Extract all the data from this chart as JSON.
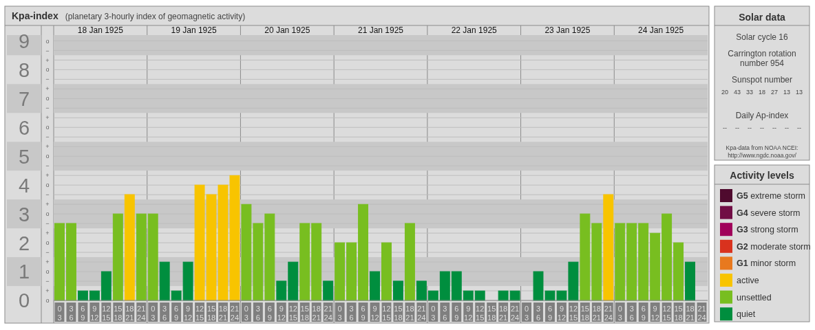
{
  "chart_data": [
    {
      "type": "bar",
      "title": "Kpa-index",
      "subtitle": "(planetary 3-hourly index of geomagnetic activity)",
      "categories": [
        "0\n3",
        "3\n6",
        "6\n9",
        "9\n12",
        "12\n15",
        "15\n18",
        "18\n21",
        "21\n24",
        "0\n3",
        "3\n6",
        "6\n9",
        "9\n12",
        "12\n15",
        "15\n18",
        "18\n21",
        "21\n24",
        "0\n3",
        "3\n6",
        "6\n9",
        "9\n12",
        "12\n15",
        "15\n18",
        "18\n21",
        "21\n24",
        "0\n3",
        "3\n6",
        "6\n9",
        "9\n12",
        "12\n15",
        "15\n18",
        "18\n21",
        "21\n24",
        "0\n3",
        "3\n6",
        "6\n9",
        "9\n12",
        "12\n15",
        "15\n18",
        "18\n21",
        "21\n24",
        "0\n3",
        "3\n6",
        "6\n9",
        "9\n12",
        "12\n15",
        "15\n18",
        "18\n21",
        "21\n24",
        "0\n3",
        "3\n6",
        "6\n9",
        "9\n12",
        "12\n15",
        "15\n18",
        "18\n21",
        "21\n24"
      ],
      "x2lim": [
        "1925-01-18",
        "1925-01-25"
      ],
      "x2ticks": [
        {
          "value": "1925-01-18T12:00",
          "label": "18 Jan 1925"
        },
        {
          "value": "1925-01-19T12:00",
          "label": "19 Jan 1925"
        },
        {
          "value": "1925-01-20T12:00",
          "label": "20 Jan 1925"
        },
        {
          "value": "1925-01-21T12:00",
          "label": "21 Jan 1925"
        },
        {
          "value": "1925-01-22T12:00",
          "label": "22 Jan 1925"
        },
        {
          "value": "1925-01-23T12:00",
          "label": "23 Jan 1925"
        },
        {
          "value": "1925-01-24T12:00",
          "label": "24 Jan 1925"
        }
      ],
      "annotations": [
        "o",
        "+",
        "−",
        "o",
        "+",
        "−",
        "o",
        "+",
        "−",
        "o",
        "+",
        "−",
        "o",
        "+",
        "−",
        "o",
        "+",
        "−",
        "o",
        "+",
        "−",
        "o",
        "+",
        "−",
        "o",
        "+",
        "−",
        "o"
      ],
      "legend": "right",
      "legend_title": "Activity levels",
      "grid": true,
      "ylim": [
        0,
        9.2
      ],
      "yticks": [
        0,
        1,
        2,
        3,
        4,
        5,
        6,
        7,
        8,
        9
      ],
      "bands": [
        {
          "axis": "y",
          "from": 0.5,
          "to": 1.5,
          "color": "#c8c8c8"
        },
        {
          "axis": "y",
          "from": 2.5,
          "to": 3.5,
          "color": "#c8c8c8"
        },
        {
          "axis": "y",
          "from": 4.5,
          "to": 5.5,
          "color": "#c8c8c8"
        },
        {
          "axis": "y",
          "from": 6.5,
          "to": 7.5,
          "color": "#c8c8c8"
        },
        {
          "axis": "y",
          "from": 8.5,
          "to": 9.2,
          "color": "#c8c8c8"
        }
      ],
      "series": [
        {
          "name": "G5 extreme storm",
          "color": "#4f0a2e",
          "values": [
            null,
            null,
            null,
            null,
            null,
            null,
            null,
            null,
            null,
            null,
            null,
            null,
            null,
            null,
            null,
            null,
            null,
            null,
            null,
            null,
            null,
            null,
            null,
            null,
            null,
            null,
            null,
            null,
            null,
            null,
            null,
            null,
            null,
            null,
            null,
            null,
            null,
            null,
            null,
            null,
            null,
            null,
            null,
            null,
            null,
            null,
            null,
            null,
            null,
            null,
            null,
            null,
            null,
            null,
            null,
            null
          ]
        },
        {
          "name": "G4 severe storm",
          "color": "#710d45",
          "values": [
            null,
            null,
            null,
            null,
            null,
            null,
            null,
            null,
            null,
            null,
            null,
            null,
            null,
            null,
            null,
            null,
            null,
            null,
            null,
            null,
            null,
            null,
            null,
            null,
            null,
            null,
            null,
            null,
            null,
            null,
            null,
            null,
            null,
            null,
            null,
            null,
            null,
            null,
            null,
            null,
            null,
            null,
            null,
            null,
            null,
            null,
            null,
            null,
            null,
            null,
            null,
            null,
            null,
            null,
            null,
            null
          ]
        },
        {
          "name": "G3 strong storm",
          "color": "#a0005a",
          "values": [
            null,
            null,
            null,
            null,
            null,
            null,
            null,
            null,
            null,
            null,
            null,
            null,
            null,
            null,
            null,
            null,
            null,
            null,
            null,
            null,
            null,
            null,
            null,
            null,
            null,
            null,
            null,
            null,
            null,
            null,
            null,
            null,
            null,
            null,
            null,
            null,
            null,
            null,
            null,
            null,
            null,
            null,
            null,
            null,
            null,
            null,
            null,
            null,
            null,
            null,
            null,
            null,
            null,
            null,
            null,
            null
          ]
        },
        {
          "name": "G2 moderate storm",
          "color": "#d9321e",
          "values": [
            null,
            null,
            null,
            null,
            null,
            null,
            null,
            null,
            null,
            null,
            null,
            null,
            null,
            null,
            null,
            null,
            null,
            null,
            null,
            null,
            null,
            null,
            null,
            null,
            null,
            null,
            null,
            null,
            null,
            null,
            null,
            null,
            null,
            null,
            null,
            null,
            null,
            null,
            null,
            null,
            null,
            null,
            null,
            null,
            null,
            null,
            null,
            null,
            null,
            null,
            null,
            null,
            null,
            null,
            null,
            null
          ]
        },
        {
          "name": "G1 minor storm",
          "color": "#e8791e",
          "values": [
            null,
            null,
            null,
            null,
            null,
            null,
            null,
            null,
            null,
            null,
            null,
            null,
            null,
            null,
            null,
            null,
            null,
            null,
            null,
            null,
            null,
            null,
            null,
            null,
            null,
            null,
            null,
            null,
            null,
            null,
            null,
            null,
            null,
            null,
            null,
            null,
            null,
            null,
            null,
            null,
            null,
            null,
            null,
            null,
            null,
            null,
            null,
            null,
            null,
            null,
            null,
            null,
            null,
            null,
            null,
            null
          ]
        },
        {
          "name": "active",
          "color": "#f8c400",
          "values": [
            null,
            null,
            null,
            null,
            null,
            null,
            3.67,
            null,
            null,
            null,
            null,
            null,
            4,
            3.67,
            4,
            4.33,
            null,
            null,
            null,
            null,
            null,
            null,
            null,
            null,
            null,
            null,
            null,
            null,
            null,
            null,
            null,
            null,
            null,
            null,
            null,
            null,
            null,
            null,
            null,
            null,
            null,
            null,
            null,
            null,
            null,
            null,
            null,
            3.67,
            null,
            null,
            null,
            null,
            null,
            null,
            null,
            null
          ]
        },
        {
          "name": "unsettled",
          "color": "#78be20",
          "values": [
            2.67,
            2.67,
            null,
            null,
            null,
            3,
            null,
            3,
            3,
            null,
            null,
            null,
            null,
            null,
            null,
            null,
            3.33,
            2.67,
            3,
            null,
            null,
            2.67,
            2.67,
            null,
            2,
            2,
            3.33,
            null,
            2,
            null,
            2.67,
            null,
            null,
            null,
            null,
            null,
            null,
            null,
            null,
            null,
            null,
            null,
            null,
            null,
            null,
            3,
            2.67,
            null,
            2.67,
            2.67,
            2.67,
            2.33,
            3,
            2,
            null,
            null
          ]
        },
        {
          "name": "quiet",
          "color": "#008e3e",
          "values": [
            null,
            null,
            0.33,
            0.33,
            1,
            null,
            null,
            null,
            null,
            1.33,
            0.33,
            1.33,
            null,
            null,
            null,
            null,
            null,
            null,
            null,
            0.67,
            1.33,
            null,
            null,
            0.67,
            null,
            null,
            null,
            1,
            null,
            0.67,
            null,
            0.67,
            0.33,
            1,
            1,
            0.33,
            0.33,
            0,
            0.33,
            0.33,
            0,
            1,
            0.33,
            0.33,
            1.33,
            null,
            null,
            null,
            null,
            null,
            null,
            null,
            null,
            null,
            1.33,
            0
          ]
        }
      ]
    },
    {
      "type": "other",
      "title": "Solar data",
      "annotations": [
        "Solar cycle 16",
        "Carrington rotation number 954",
        "Sunspot number",
        "20 43 33 18 27 13 13",
        "Daily Ap-index",
        "-- -- -- -- -- -- --",
        "Kpa-data from NOAA NCEI: http://www.ngdc.noaa.gov/"
      ]
    }
  ]
}
